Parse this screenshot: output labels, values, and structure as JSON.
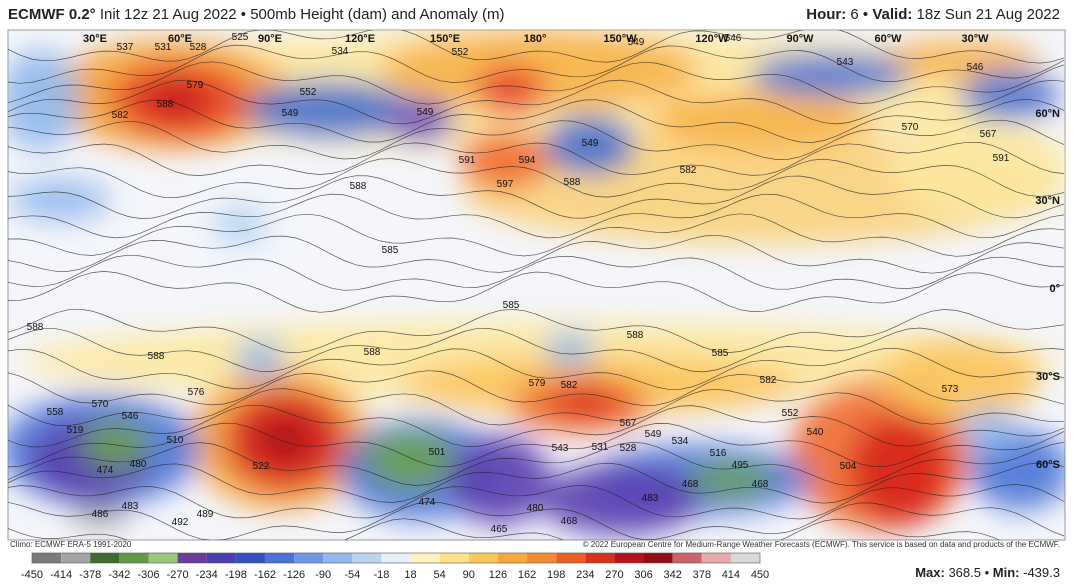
{
  "header": {
    "model": "ECMWF 0.2°",
    "init": "Init 12z 21 Aug 2022 • 500mb Height (dam) and Anomaly (m)",
    "hour_label": "Hour:",
    "hour": "6 •",
    "valid_label": "Valid:",
    "valid": "18z Sun 21 Aug 2022"
  },
  "map": {
    "longitude_labels": [
      "30°E",
      "60°E",
      "90°E",
      "120°E",
      "150°E",
      "180°",
      "150°W",
      "120°W",
      "90°W",
      "60°W",
      "30°W"
    ],
    "latitude_labels": [
      "60°N",
      "30°N",
      "0°",
      "30°S",
      "60°S"
    ],
    "contour_labels": [
      "537",
      "531",
      "528",
      "525",
      "534",
      "552",
      "549",
      "546",
      "543",
      "546",
      "579",
      "588",
      "582",
      "552",
      "549",
      "549",
      "549",
      "591",
      "594",
      "597",
      "588",
      "582",
      "570",
      "567",
      "591",
      "588",
      "585",
      "585",
      "588",
      "588",
      "588",
      "588",
      "585",
      "582",
      "573",
      "579",
      "582",
      "576",
      "570",
      "558",
      "546",
      "519",
      "510",
      "567",
      "549",
      "534",
      "531",
      "528",
      "543",
      "516",
      "522",
      "501",
      "474",
      "480",
      "495",
      "468",
      "468",
      "504",
      "483",
      "486",
      "483",
      "492",
      "489",
      "474",
      "480",
      "468",
      "465",
      "540",
      "552"
    ]
  },
  "footer": {
    "climo": "Climo: ECMWF ERA-5 1991-2020",
    "copyright": "© 2022 European Centre for Medium-Range Weather Forecasts (ECMWF). This service is based on data and products of the ECMWF.",
    "colorbar_ticks": [
      "-450",
      "-414",
      "-378",
      "-342",
      "-306",
      "-270",
      "-234",
      "-198",
      "-162",
      "-126",
      "-90",
      "-54",
      "-18",
      "18",
      "54",
      "90",
      "126",
      "162",
      "198",
      "234",
      "270",
      "306",
      "342",
      "378",
      "414",
      "450"
    ],
    "max_label": "Max:",
    "max": "368.5 •",
    "min_label": "Min:",
    "min": "-439.3"
  }
}
